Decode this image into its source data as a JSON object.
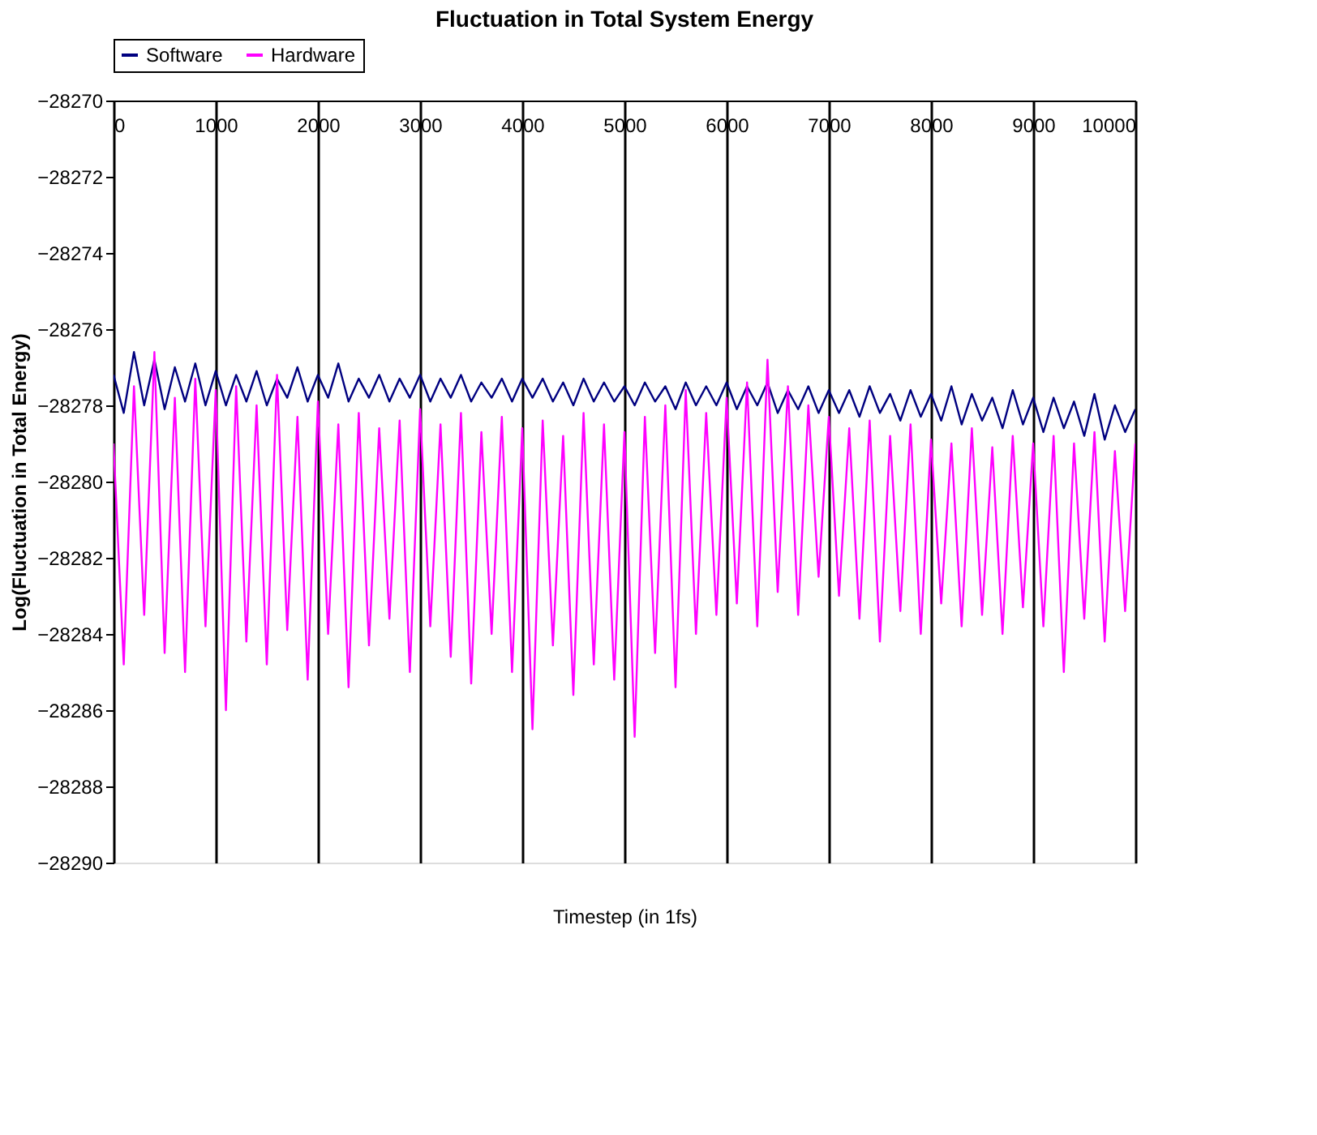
{
  "chart_data": {
    "type": "line",
    "title": "Fluctuation in Total System Energy",
    "xlabel": "Timestep (in 1fs)",
    "ylabel": "Log(Fluctuation in Total Energy)",
    "x": [
      0,
      100,
      200,
      300,
      400,
      500,
      600,
      700,
      800,
      900,
      1000,
      1100,
      1200,
      1300,
      1400,
      1500,
      1600,
      1700,
      1800,
      1900,
      2000,
      2100,
      2200,
      2300,
      2400,
      2500,
      2600,
      2700,
      2800,
      2900,
      3000,
      3100,
      3200,
      3300,
      3400,
      3500,
      3600,
      3700,
      3800,
      3900,
      4000,
      4100,
      4200,
      4300,
      4400,
      4500,
      4600,
      4700,
      4800,
      4900,
      5000,
      5100,
      5200,
      5300,
      5400,
      5500,
      5600,
      5700,
      5800,
      5900,
      6000,
      6100,
      6200,
      6300,
      6400,
      6500,
      6600,
      6700,
      6800,
      6900,
      7000,
      7100,
      7200,
      7300,
      7400,
      7500,
      7600,
      7700,
      7800,
      7900,
      8000,
      8100,
      8200,
      8300,
      8400,
      8500,
      8600,
      8700,
      8800,
      8900,
      9000,
      9100,
      9200,
      9300,
      9400,
      9500,
      9600,
      9700,
      9800,
      9900,
      10000
    ],
    "series": [
      {
        "name": "Software",
        "color": "#000080",
        "values": [
          -28277.2,
          -28278.2,
          -28276.6,
          -28278.0,
          -28276.8,
          -28278.1,
          -28277.0,
          -28277.9,
          -28276.9,
          -28278.0,
          -28277.1,
          -28278.0,
          -28277.2,
          -28277.9,
          -28277.1,
          -28278.0,
          -28277.3,
          -28277.8,
          -28277.0,
          -28277.9,
          -28277.2,
          -28277.8,
          -28276.9,
          -28277.9,
          -28277.3,
          -28277.8,
          -28277.2,
          -28277.9,
          -28277.3,
          -28277.8,
          -28277.2,
          -28277.9,
          -28277.3,
          -28277.8,
          -28277.2,
          -28277.9,
          -28277.4,
          -28277.8,
          -28277.3,
          -28277.9,
          -28277.3,
          -28277.8,
          -28277.3,
          -28277.9,
          -28277.4,
          -28278.0,
          -28277.3,
          -28277.9,
          -28277.4,
          -28277.9,
          -28277.5,
          -28278.0,
          -28277.4,
          -28277.9,
          -28277.5,
          -28278.1,
          -28277.4,
          -28278.0,
          -28277.5,
          -28278.0,
          -28277.4,
          -28278.1,
          -28277.5,
          -28278.0,
          -28277.4,
          -28278.2,
          -28277.6,
          -28278.1,
          -28277.5,
          -28278.2,
          -28277.6,
          -28278.2,
          -28277.6,
          -28278.3,
          -28277.5,
          -28278.2,
          -28277.7,
          -28278.4,
          -28277.6,
          -28278.3,
          -28277.7,
          -28278.4,
          -28277.5,
          -28278.5,
          -28277.7,
          -28278.4,
          -28277.8,
          -28278.6,
          -28277.6,
          -28278.5,
          -28277.8,
          -28278.7,
          -28277.8,
          -28278.6,
          -28277.9,
          -28278.8,
          -28277.7,
          -28278.9,
          -28278.0,
          -28278.7,
          -28278.1
        ]
      },
      {
        "name": "Hardware",
        "color": "#ff00ff",
        "values": [
          -28279.0,
          -28284.8,
          -28277.5,
          -28283.5,
          -28276.6,
          -28284.5,
          -28277.8,
          -28285.0,
          -28277.3,
          -28283.8,
          -28277.6,
          -28286.0,
          -28277.5,
          -28284.2,
          -28278.0,
          -28284.8,
          -28277.2,
          -28283.9,
          -28278.3,
          -28285.2,
          -28277.9,
          -28284.0,
          -28278.5,
          -28285.4,
          -28278.2,
          -28284.3,
          -28278.6,
          -28283.6,
          -28278.4,
          -28285.0,
          -28278.1,
          -28283.8,
          -28278.5,
          -28284.6,
          -28278.2,
          -28285.3,
          -28278.7,
          -28284.0,
          -28278.3,
          -28285.0,
          -28278.6,
          -28286.5,
          -28278.4,
          -28284.3,
          -28278.8,
          -28285.6,
          -28278.2,
          -28284.8,
          -28278.5,
          -28285.2,
          -28278.7,
          -28286.7,
          -28278.3,
          -28284.5,
          -28278.0,
          -28285.4,
          -28277.6,
          -28284.0,
          -28278.2,
          -28283.5,
          -28277.8,
          -28283.2,
          -28277.4,
          -28283.8,
          -28276.8,
          -28282.9,
          -28277.5,
          -28283.5,
          -28278.0,
          -28282.5,
          -28278.3,
          -28283.0,
          -28278.6,
          -28283.6,
          -28278.4,
          -28284.2,
          -28278.8,
          -28283.4,
          -28278.5,
          -28284.0,
          -28278.9,
          -28283.2,
          -28279.0,
          -28283.8,
          -28278.6,
          -28283.5,
          -28279.1,
          -28284.0,
          -28278.8,
          -28283.3,
          -28279.0,
          -28283.8,
          -28278.8,
          -28285.0,
          -28279.0,
          -28283.6,
          -28278.7,
          -28284.2,
          -28279.2,
          -28283.4,
          -28279.0
        ]
      }
    ],
    "xlim": [
      0,
      10000
    ],
    "xticks": [
      0,
      1000,
      2000,
      3000,
      4000,
      5000,
      6000,
      7000,
      8000,
      9000,
      10000
    ],
    "ylim": [
      -28290,
      -28270
    ],
    "yticks": [
      -28270,
      -28272,
      -28274,
      -28276,
      -28278,
      -28280,
      -28282,
      -28284,
      -28286,
      -28288,
      -28290
    ],
    "grid": "x",
    "legend": "top",
    "marker": "none",
    "line_style": "solid"
  }
}
